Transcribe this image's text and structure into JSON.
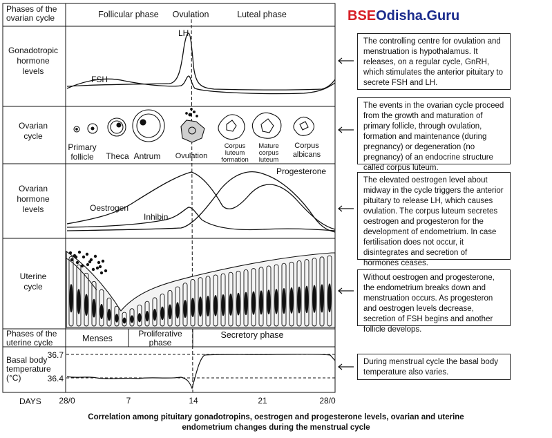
{
  "logo": {
    "part1": "BSE",
    "part2": "Odisha",
    "part3": ".Guru"
  },
  "rows": {
    "phases_ovarian": [
      "Phases of the",
      "ovarian cycle"
    ],
    "gonadotropic": [
      "Gonadotropic",
      "hormone",
      "levels"
    ],
    "ovarian_cycle": [
      "Ovarian",
      "cycle"
    ],
    "ovarian_hormone": [
      "Ovarian",
      "hormone",
      "levels"
    ],
    "uterine": [
      "Uterine",
      "cycle"
    ],
    "phases_uterine": [
      "Phases of the",
      "uterine cycle"
    ],
    "basal": [
      "Basal body",
      "temperature",
      "(°C)"
    ],
    "days": "DAYS"
  },
  "top_phases": {
    "follicular": "Follicular phase",
    "ovulation": "Ovulation",
    "luteal": "Luteal phase"
  },
  "hormones": {
    "lh": "LH",
    "fsh": "FSH",
    "oestrogen": "Oestrogen",
    "inhibin": "Inhibin",
    "progesterone": "Progesterone"
  },
  "ovarian_stages": {
    "primary": [
      "Primary",
      "follicle"
    ],
    "theca": "Theca",
    "antrum": "Antrum",
    "ovulation": "Ovulation",
    "corpus_formation": [
      "Corpus",
      "luteum",
      "formation"
    ],
    "mature_corpus": [
      "Mature",
      "corpus",
      "luteum"
    ],
    "albicans": [
      "Corpus",
      "albicans"
    ]
  },
  "uterine_phases": {
    "menses": "Menses",
    "proliferative": [
      "Proliferative",
      "phase"
    ],
    "secretory": "Secretory phase"
  },
  "temperature": {
    "high": "36.7",
    "low": "36.4"
  },
  "day_ticks": [
    "28/0",
    "7",
    "14",
    "21",
    "28/0"
  ],
  "notes": [
    "The controlling centre for ovulation and menstruation is hypothalamus. It releases, on a regular cycle, GnRH, which stimulates the anterior pituitary to secrete FSH and LH.",
    "The events in the ovarian cycle proceed from the growth and maturation of primary follicle, through ovulation, formation and maintenance (during pregnancy) or degeneration (no pregnancy) of an endocrine structure called corpus luteum.",
    "The elevated oestrogen level about midway in the cycle triggers the anterior pituitary to release LH, which causes ovulation. The corpus luteum secretes oestrogen and progesteron for the development of endometrium. In case fertilisation does not occur, it disintegrates and secretion of hormones ceases.",
    "Without oestrogen and progesterone, the endometrium breaks down and menstruation occurs. As progesteron and oestrogen levels decrease, secretion of FSH begins and another follicle develops.",
    "During menstrual cycle the basal body temperature also varies."
  ],
  "caption": [
    "Correlation among pituitary gonadotropins, oestrogen and progesterone levels, ovarian and uterine",
    "endometrium changes during the menstrual cycle"
  ]
}
